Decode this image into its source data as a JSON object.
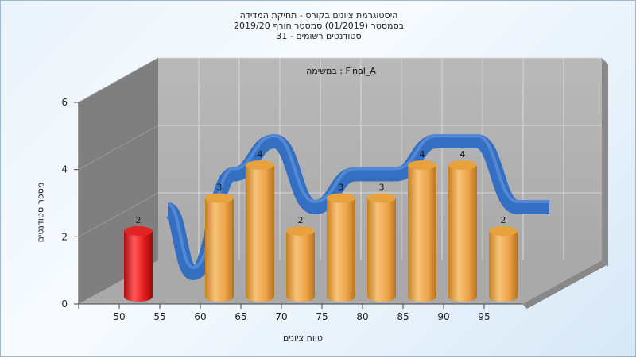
{
  "titles": [
    "היסטוגרמת ציונים בקורס - תחיקת המדידה",
    "בסמסטר  (01/2019)  סמסטר חורף 2019/20",
    "סטודנטים רשומים - 31"
  ],
  "chart_data": {
    "type": "bar",
    "subtitle": "במשימה : Final_A",
    "xlabel": "טווח ציונים",
    "ylabel": "מספר סטודנטים",
    "categories": [
      "50",
      "55",
      "60",
      "65",
      "70",
      "75",
      "80",
      "85",
      "90",
      "95"
    ],
    "values": [
      2,
      0,
      3,
      4,
      2,
      3,
      3,
      4,
      4,
      2
    ],
    "highlight_index": 0,
    "ylim": [
      0,
      6
    ],
    "yticks": [
      0,
      2,
      4,
      6
    ],
    "grid": true,
    "trend_line": true,
    "colors": {
      "bar": "#f0a847",
      "highlight_bar": "#e21b1b",
      "trend": "#2f6fc4",
      "back_wall": "#b4b4b4",
      "side_wall": "#7d7d7d",
      "floor": "#a8a8a8"
    }
  }
}
